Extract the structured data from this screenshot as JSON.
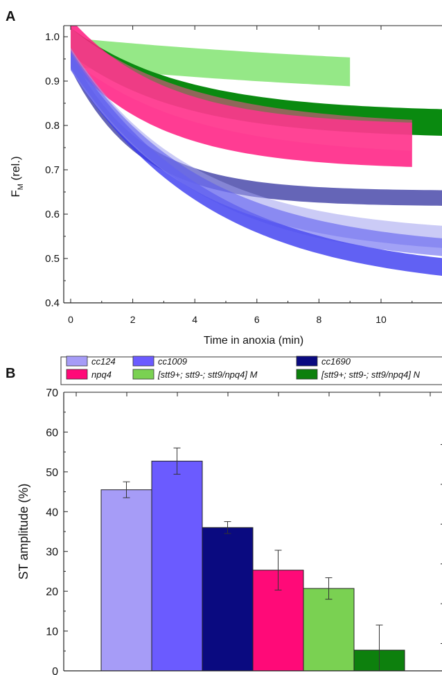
{
  "panels": {
    "a_label": "A",
    "b_label": "B"
  },
  "chart_data": [
    {
      "type": "area",
      "panel": "A",
      "ylabel_main": "F",
      "ylabel_sub": "M",
      "ylabel_rest": " (rel.)",
      "xlabel": "Time in anoxia (min)",
      "xlim": [
        -0.5,
        12
      ],
      "ylim": [
        0.4,
        1.03
      ],
      "xticks": [
        0,
        2,
        4,
        6,
        8,
        10
      ],
      "yticks": [
        0.4,
        0.5,
        0.6,
        0.7,
        0.8,
        0.9,
        1.0
      ],
      "ytick_labels": [
        "0.4",
        "0.5",
        "0.6",
        "0.7",
        "0.8",
        "0.9",
        "1.0"
      ],
      "grid": false,
      "series": [
        {
          "id": "green-light",
          "color": "#72e05f",
          "opacity": 0.75,
          "x": [
            0,
            9
          ],
          "a": 0.965,
          "b": 0.09,
          "k": 0.075,
          "band": 0.065
        },
        {
          "id": "green-dark",
          "color": "#0a8a10",
          "opacity": 1.0,
          "x": [
            0,
            12
          ],
          "a": 0.99,
          "b": 0.19,
          "k": 0.28,
          "band": 0.06
        },
        {
          "id": "pink-1",
          "color": "#ff1a80",
          "opacity": 0.85,
          "x": [
            0,
            11
          ],
          "a": 0.99,
          "b": 0.24,
          "k": 0.33,
          "band": 0.1
        },
        {
          "id": "pink-2",
          "color": "#ff4a98",
          "opacity": 0.55,
          "x": [
            0,
            11
          ],
          "a": 0.985,
          "b": 0.22,
          "k": 0.26,
          "band": 0.07
        },
        {
          "id": "slate-1",
          "color": "#4a4aaa",
          "opacity": 0.85,
          "x": [
            0,
            12
          ],
          "a": 0.945,
          "b": 0.31,
          "k": 0.45,
          "band": 0.035
        },
        {
          "id": "blue-1",
          "color": "#3a3af0",
          "opacity": 0.8,
          "x": [
            0,
            12
          ],
          "a": 0.945,
          "b": 0.5,
          "k": 0.22,
          "band": 0.04
        },
        {
          "id": "lavender-1",
          "color": "#a0a0ee",
          "opacity": 0.55,
          "x": [
            0,
            12
          ],
          "a": 0.95,
          "b": 0.42,
          "k": 0.26,
          "band": 0.05
        },
        {
          "id": "blue-2",
          "color": "#5555ee",
          "opacity": 0.55,
          "x": [
            0,
            12
          ],
          "a": 0.95,
          "b": 0.45,
          "k": 0.24,
          "band": 0.04
        }
      ]
    },
    {
      "type": "bar",
      "panel": "B",
      "ylabel": "ST amplitude (%)",
      "ylim": [
        0,
        70
      ],
      "yticks": [
        0,
        10,
        20,
        30,
        40,
        50,
        60,
        70
      ],
      "ytick_labels": [
        "0",
        "10",
        "20",
        "30",
        "40",
        "50",
        "60",
        "70"
      ],
      "grid": false,
      "legend_placement": "top",
      "categories": [
        "cc124",
        "cc1009",
        "cc1690",
        "npq4",
        "[stt9+; stt9-; stt9/npq4] M",
        "[stt9+; stt9-; stt9/npq4] N"
      ],
      "values": [
        45.5,
        52.7,
        36.0,
        25.3,
        20.7,
        5.2
      ],
      "errors": [
        2.0,
        3.3,
        1.5,
        5.0,
        2.7,
        6.3
      ],
      "colors": [
        "#a69cf7",
        "#6b5bff",
        "#0a0a80",
        "#ff0a78",
        "#7ad152",
        "#0d800d"
      ]
    }
  ]
}
